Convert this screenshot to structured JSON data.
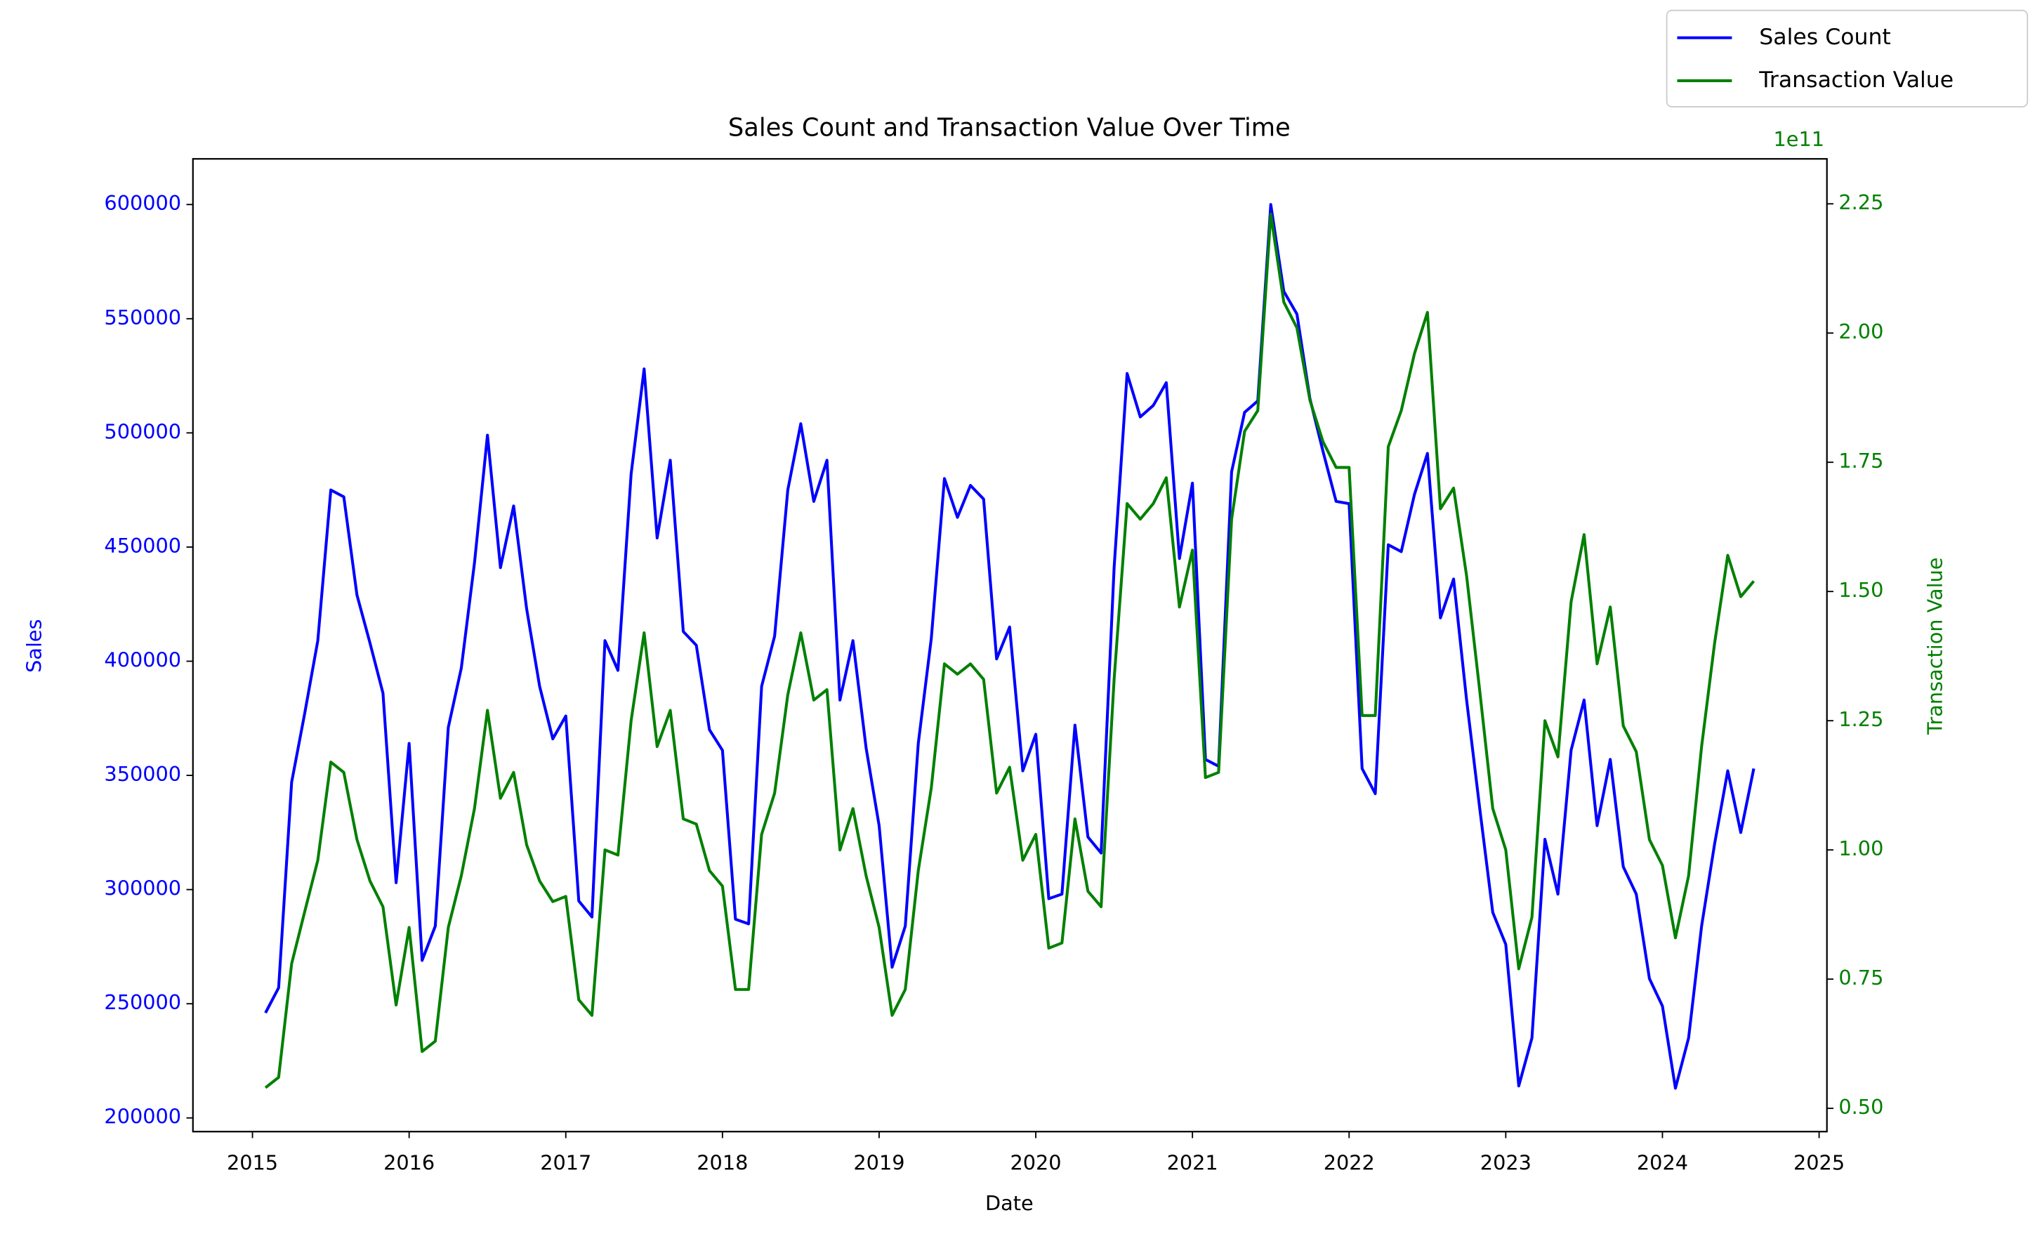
{
  "chart_data": {
    "type": "line",
    "title": "Sales Count and Transaction Value Over Time",
    "x_label": "Date",
    "y_label": "Sales",
    "y2_label": "Transaction Value",
    "y2_offset_label": "1e11",
    "legend": "upper right",
    "xlim": [
      2014.62,
      2025.05
    ],
    "xticks": [
      2015,
      2016,
      2017,
      2018,
      2019,
      2020,
      2021,
      2022,
      2023,
      2024,
      2025
    ],
    "ylim": [
      194000,
      620000
    ],
    "yticks": [
      200000,
      250000,
      300000,
      350000,
      400000,
      450000,
      500000,
      550000,
      600000
    ],
    "y2lim": [
      45500000000,
      233700000000
    ],
    "y2ticks": [
      {
        "value": 50000000000,
        "label": "0.50"
      },
      {
        "value": 75000000000,
        "label": "0.75"
      },
      {
        "value": 100000000000,
        "label": "1.00"
      },
      {
        "value": 125000000000,
        "label": "1.25"
      },
      {
        "value": 150000000000,
        "label": "1.50"
      },
      {
        "value": 175000000000,
        "label": "1.75"
      },
      {
        "value": 200000000000,
        "label": "2.00"
      },
      {
        "value": 225000000000,
        "label": "2.25"
      }
    ],
    "x": [
      2015.083,
      2015.167,
      2015.25,
      2015.333,
      2015.417,
      2015.5,
      2015.583,
      2015.667,
      2015.75,
      2015.833,
      2015.917,
      2016.0,
      2016.083,
      2016.167,
      2016.25,
      2016.333,
      2016.417,
      2016.5,
      2016.583,
      2016.667,
      2016.75,
      2016.833,
      2016.917,
      2017.0,
      2017.083,
      2017.167,
      2017.25,
      2017.333,
      2017.417,
      2017.5,
      2017.583,
      2017.667,
      2017.75,
      2017.833,
      2017.917,
      2018.0,
      2018.083,
      2018.167,
      2018.25,
      2018.333,
      2018.417,
      2018.5,
      2018.583,
      2018.667,
      2018.75,
      2018.833,
      2018.917,
      2019.0,
      2019.083,
      2019.167,
      2019.25,
      2019.333,
      2019.417,
      2019.5,
      2019.583,
      2019.667,
      2019.75,
      2019.833,
      2019.917,
      2020.0,
      2020.083,
      2020.167,
      2020.25,
      2020.333,
      2020.417,
      2020.5,
      2020.583,
      2020.667,
      2020.75,
      2020.833,
      2020.917,
      2021.0,
      2021.083,
      2021.167,
      2021.25,
      2021.333,
      2021.417,
      2021.5,
      2021.583,
      2021.667,
      2021.75,
      2021.833,
      2021.917,
      2022.0,
      2022.083,
      2022.167,
      2022.25,
      2022.333,
      2022.417,
      2022.5,
      2022.583,
      2022.667,
      2022.75,
      2022.833,
      2022.917,
      2023.0,
      2023.083,
      2023.167,
      2023.25,
      2023.333,
      2023.417,
      2023.5,
      2023.583,
      2023.667,
      2023.75,
      2023.833,
      2023.917,
      2024.0,
      2024.083,
      2024.167,
      2024.25,
      2024.333,
      2024.417,
      2024.5,
      2024.583
    ],
    "series": [
      {
        "name": "Sales Count",
        "color": "#0000ff",
        "axis": "y",
        "values": [
          246000,
          257000,
          347000,
          377000,
          409000,
          475000,
          472000,
          429000,
          408000,
          386000,
          303000,
          364000,
          269000,
          284000,
          371000,
          397000,
          443000,
          499000,
          441000,
          468000,
          423000,
          389000,
          366000,
          376000,
          295000,
          288000,
          409000,
          396000,
          482000,
          528000,
          454000,
          488000,
          413000,
          407000,
          370000,
          361000,
          287000,
          285000,
          389000,
          411000,
          475000,
          504000,
          470000,
          488000,
          383000,
          409000,
          362000,
          328000,
          266000,
          284000,
          364000,
          410000,
          480000,
          463000,
          477000,
          471000,
          401000,
          415000,
          352000,
          368000,
          296000,
          298000,
          372000,
          323000,
          316000,
          441000,
          526000,
          507000,
          512000,
          522000,
          445000,
          478000,
          357000,
          354000,
          483000,
          509000,
          514000,
          600000,
          562000,
          552000,
          515000,
          492000,
          470000,
          469000,
          353000,
          342000,
          451000,
          448000,
          473000,
          491000,
          419000,
          436000,
          383000,
          336000,
          290000,
          276000,
          214000,
          235000,
          322000,
          298000,
          361000,
          383000,
          328000,
          357000,
          310000,
          298000,
          261000,
          249000,
          213000,
          235000,
          284000,
          320000,
          352000,
          325000,
          353000
        ]
      },
      {
        "name": "Transaction Value",
        "color": "#008000",
        "axis": "y2",
        "values": [
          54000000000.0,
          56000000000.0,
          78000000000.0,
          88000000000.0,
          98000000000.0,
          117000000000.0,
          115000000000.0,
          102000000000.0,
          94000000000.0,
          89000000000.0,
          70000000000.0,
          85000000000.0,
          61000000000.0,
          63000000000.0,
          85000000000.0,
          95000000000.0,
          108000000000.0,
          127000000000.0,
          110000000000.0,
          115000000000.0,
          101000000000.0,
          94000000000.0,
          90000000000.0,
          91000000000.0,
          71000000000.0,
          68000000000.0,
          100000000000.0,
          99000000000.0,
          125000000000.0,
          142000000000.0,
          120000000000.0,
          127000000000.0,
          106000000000.0,
          105000000000.0,
          96000000000.0,
          93000000000.0,
          73000000000.0,
          73000000000.0,
          103000000000.0,
          111000000000.0,
          130000000000.0,
          142000000000.0,
          129000000000.0,
          131000000000.0,
          100000000000.0,
          108000000000.0,
          95000000000.0,
          85000000000.0,
          68000000000.0,
          73000000000.0,
          96000000000.0,
          112000000000.0,
          136000000000.0,
          134000000000.0,
          136000000000.0,
          133000000000.0,
          111000000000.0,
          116000000000.0,
          98000000000.0,
          103000000000.0,
          81000000000.0,
          82000000000.0,
          106000000000.0,
          92000000000.0,
          89000000000.0,
          133000000000.0,
          167000000000.0,
          164000000000.0,
          167000000000.0,
          172000000000.0,
          147000000000.0,
          158000000000.0,
          114000000000.0,
          115000000000.0,
          164000000000.0,
          181000000000.0,
          185000000000.0,
          223000000000.0,
          206000000000.0,
          201000000000.0,
          187000000000.0,
          179000000000.0,
          174000000000.0,
          174000000000.0,
          126000000000.0,
          126000000000.0,
          178000000000.0,
          185000000000.0,
          196000000000.0,
          204000000000.0,
          166000000000.0,
          170000000000.0,
          153000000000.0,
          131000000000.0,
          108000000000.0,
          100000000000.0,
          77000000000.0,
          87000000000.0,
          125000000000.0,
          118000000000.0,
          148000000000.0,
          161000000000.0,
          136000000000.0,
          147000000000.0,
          124000000000.0,
          119000000000.0,
          102000000000.0,
          97000000000.0,
          83000000000.0,
          95000000000.0,
          120000000000.0,
          140000000000.0,
          157000000000.0,
          149000000000.0,
          152000000000.0
        ]
      }
    ]
  }
}
